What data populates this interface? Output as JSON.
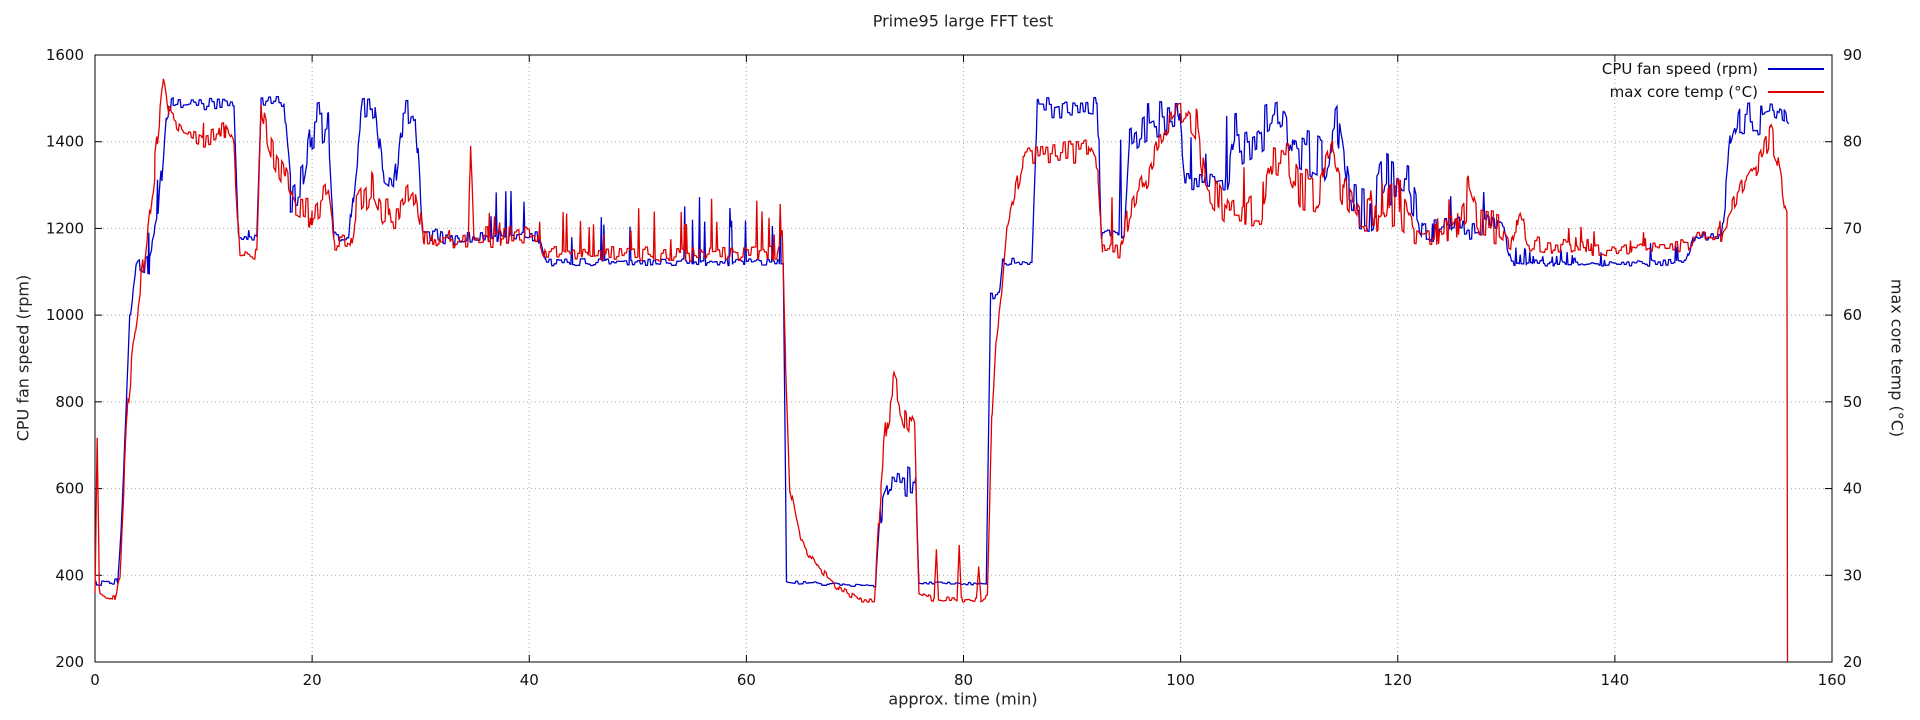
{
  "chart_data": {
    "type": "line",
    "title": "Prime95 large FFT test",
    "xlabel": "approx. time (min)",
    "ylabel": "CPU fan speed (rpm)",
    "y2label": "max core temp (°C)",
    "xlim": [
      0,
      160
    ],
    "ylim_left": [
      200,
      1600
    ],
    "ylim_right": [
      20,
      90
    ],
    "xticks": [
      0,
      20,
      40,
      60,
      80,
      100,
      120,
      140,
      160
    ],
    "yticks_left": [
      200,
      400,
      600,
      800,
      1000,
      1200,
      1400,
      1600
    ],
    "yticks_right": [
      20,
      30,
      40,
      50,
      60,
      70,
      80,
      90
    ],
    "grid": true,
    "legend_position": "top-right",
    "background": "#ffffff",
    "sample_step": 0.08,
    "seed": 20240,
    "series": [
      {
        "id": "cpu-fan-speed",
        "name": "CPU fan speed (rpm)",
        "color": "#0000cc",
        "axis": "left",
        "units": "rpm",
        "anchors": [
          [
            0,
            380,
            6,
            0
          ],
          [
            2.1,
            385,
            8,
            0
          ],
          [
            2.5,
            560,
            20,
            0
          ],
          [
            3.2,
            1000,
            25,
            0
          ],
          [
            3.8,
            1115,
            15,
            60
          ],
          [
            5,
            1130,
            40,
            120
          ],
          [
            5.8,
            1200,
            60,
            100
          ],
          [
            6.6,
            1470,
            25,
            0
          ],
          [
            7.2,
            1488,
            14,
            0
          ],
          [
            12.8,
            1488,
            14,
            0
          ],
          [
            13.2,
            1185,
            10,
            0
          ],
          [
            14.9,
            1182,
            10,
            40
          ],
          [
            15.3,
            1490,
            12,
            0
          ],
          [
            17.4,
            1490,
            15,
            0
          ],
          [
            18,
            1280,
            45,
            0
          ],
          [
            19.2,
            1300,
            60,
            0
          ],
          [
            20,
            1420,
            70,
            0
          ],
          [
            21.5,
            1440,
            60,
            0
          ],
          [
            22,
            1185,
            12,
            0
          ],
          [
            23.4,
            1180,
            12,
            0
          ],
          [
            23.8,
            1300,
            40,
            0
          ],
          [
            24.6,
            1470,
            30,
            0
          ],
          [
            25.8,
            1480,
            25,
            0
          ],
          [
            26.5,
            1320,
            40,
            0
          ],
          [
            27.5,
            1300,
            50,
            0
          ],
          [
            28.2,
            1460,
            50,
            0
          ],
          [
            29.5,
            1470,
            40,
            0
          ],
          [
            30.2,
            1185,
            18,
            0
          ],
          [
            32.8,
            1175,
            18,
            0
          ],
          [
            33.5,
            1180,
            14,
            110
          ],
          [
            40.8,
            1180,
            14,
            120
          ],
          [
            41.5,
            1122,
            8,
            140
          ],
          [
            55,
            1122,
            8,
            150
          ],
          [
            63,
            1122,
            8,
            170
          ],
          [
            63.4,
            1125,
            10,
            200
          ],
          [
            63.7,
            385,
            4,
            0
          ],
          [
            71.9,
            374,
            3,
            0
          ],
          [
            72.4,
            560,
            50,
            0
          ],
          [
            73.3,
            630,
            55,
            0
          ],
          [
            75.6,
            615,
            50,
            0
          ],
          [
            75.9,
            382,
            3,
            0
          ],
          [
            82.1,
            380,
            3,
            0
          ],
          [
            82.5,
            1045,
            10,
            0
          ],
          [
            83.3,
            1048,
            8,
            0
          ],
          [
            83.6,
            1122,
            10,
            0
          ],
          [
            86.3,
            1122,
            10,
            0
          ],
          [
            86.8,
            1480,
            25,
            0
          ],
          [
            92.3,
            1480,
            25,
            0
          ],
          [
            92.7,
            1185,
            15,
            120
          ],
          [
            94.8,
            1185,
            15,
            250
          ],
          [
            95.3,
            1420,
            60,
            0
          ],
          [
            97,
            1450,
            55,
            0
          ],
          [
            99.8,
            1460,
            40,
            0
          ],
          [
            100.4,
            1305,
            25,
            120
          ],
          [
            104.3,
            1300,
            30,
            150
          ],
          [
            105,
            1400,
            70,
            0
          ],
          [
            107,
            1420,
            60,
            0
          ],
          [
            109.5,
            1460,
            45,
            0
          ],
          [
            110.5,
            1380,
            70,
            0
          ],
          [
            113,
            1350,
            80,
            0
          ],
          [
            114.5,
            1420,
            70,
            0
          ],
          [
            115.5,
            1260,
            60,
            0
          ],
          [
            117.5,
            1250,
            60,
            0
          ],
          [
            119,
            1300,
            80,
            0
          ],
          [
            121,
            1290,
            70,
            0
          ],
          [
            122.3,
            1190,
            25,
            70
          ],
          [
            126,
            1200,
            30,
            80
          ],
          [
            128,
            1210,
            35,
            60
          ],
          [
            129.8,
            1190,
            20,
            40
          ],
          [
            130.5,
            1122,
            7,
            50
          ],
          [
            134,
            1120,
            7,
            30
          ],
          [
            140,
            1118,
            6,
            30
          ],
          [
            146.5,
            1122,
            8,
            50
          ],
          [
            147.3,
            1180,
            10,
            30
          ],
          [
            149.8,
            1182,
            10,
            30
          ],
          [
            150.6,
            1380,
            50,
            0
          ],
          [
            151.5,
            1450,
            50,
            0
          ],
          [
            153.5,
            1460,
            45,
            0
          ],
          [
            154.6,
            1470,
            25,
            0
          ],
          [
            155.6,
            1455,
            20,
            0
          ],
          [
            156,
            1440,
            15,
            0
          ]
        ]
      },
      {
        "id": "max-core-temp",
        "name": "max core temp (°C)",
        "color": "#e00000",
        "axis": "right",
        "units": "°C",
        "anchors": [
          [
            0,
            28,
            0.4,
            0
          ],
          [
            0.2,
            46,
            1,
            0
          ],
          [
            0.4,
            28,
            0.5,
            0
          ],
          [
            1.8,
            27.3,
            0.4,
            0
          ],
          [
            2.3,
            30,
            0.5,
            0
          ],
          [
            3,
            50,
            1.5,
            0
          ],
          [
            3.6,
            57,
            1.5,
            0
          ],
          [
            4.5,
            66,
            1.5,
            0
          ],
          [
            5.5,
            77,
            1.5,
            0
          ],
          [
            6.3,
            87,
            1.2,
            0
          ],
          [
            6.8,
            83,
            1.2,
            0
          ],
          [
            8,
            81.5,
            1.2,
            0
          ],
          [
            10,
            80.5,
            1.2,
            2
          ],
          [
            12,
            81,
            1.5,
            2
          ],
          [
            12.8,
            79,
            1.5,
            0
          ],
          [
            13.3,
            67.5,
            0.8,
            0
          ],
          [
            14.9,
            67,
            0.8,
            2
          ],
          [
            15.3,
            83.5,
            1.5,
            0
          ],
          [
            16.2,
            79,
            1.5,
            0
          ],
          [
            17.5,
            76,
            1.5,
            0
          ],
          [
            18.5,
            72.5,
            1.5,
            0
          ],
          [
            20,
            72,
            2,
            2
          ],
          [
            21.5,
            74,
            2,
            0
          ],
          [
            22.1,
            68.5,
            1,
            0
          ],
          [
            23.5,
            68,
            1,
            0
          ],
          [
            24,
            72,
            2,
            0
          ],
          [
            25.5,
            74.5,
            2,
            0
          ],
          [
            26.5,
            71.5,
            2,
            0
          ],
          [
            28,
            72,
            2,
            2
          ],
          [
            29.5,
            74.5,
            2,
            0
          ],
          [
            30.3,
            68.8,
            1,
            0
          ],
          [
            33,
            68.3,
            1,
            2
          ],
          [
            34.4,
            68.5,
            1,
            0
          ],
          [
            34.6,
            80.5,
            1,
            0
          ],
          [
            34.9,
            69,
            1,
            0
          ],
          [
            36,
            69,
            1.2,
            4
          ],
          [
            40.8,
            69,
            1.2,
            4
          ],
          [
            41.5,
            67.2,
            0.8,
            5
          ],
          [
            55,
            67,
            0.8,
            6
          ],
          [
            62.9,
            67.2,
            0.8,
            7
          ],
          [
            63.3,
            70,
            1,
            7
          ],
          [
            63.6,
            55,
            1,
            0
          ],
          [
            64,
            40,
            0.8,
            0
          ],
          [
            65,
            34,
            0.5,
            0
          ],
          [
            66.5,
            31,
            0.4,
            0
          ],
          [
            68.5,
            28.5,
            0.4,
            0
          ],
          [
            70.5,
            27.2,
            0.3,
            0
          ],
          [
            71.8,
            27,
            0.3,
            0
          ],
          [
            72.4,
            40,
            2,
            0
          ],
          [
            73,
            48,
            2.5,
            0
          ],
          [
            73.6,
            51,
            2.5,
            0
          ],
          [
            74.6,
            48,
            2.5,
            0
          ],
          [
            75.5,
            46,
            2,
            0
          ],
          [
            75.9,
            28,
            0.4,
            0
          ],
          [
            77.3,
            27.2,
            0.3,
            0
          ],
          [
            77.5,
            33,
            0,
            0
          ],
          [
            77.7,
            27.2,
            0.3,
            0
          ],
          [
            79.4,
            27.2,
            0.3,
            0
          ],
          [
            79.6,
            33.5,
            0,
            0
          ],
          [
            79.8,
            27.2,
            0.3,
            0
          ],
          [
            81.2,
            27.2,
            0.3,
            0
          ],
          [
            81.4,
            31,
            0,
            0
          ],
          [
            81.6,
            27.2,
            0.3,
            0
          ],
          [
            82.2,
            27.5,
            0.3,
            0
          ],
          [
            82.6,
            48,
            1,
            0
          ],
          [
            83,
            57,
            1,
            0
          ],
          [
            83.5,
            62,
            1,
            0
          ],
          [
            84,
            70,
            1,
            0
          ],
          [
            85.5,
            78,
            1.2,
            0
          ],
          [
            88,
            78.5,
            1.2,
            0
          ],
          [
            91.5,
            79,
            1.5,
            0
          ],
          [
            92.4,
            77,
            1.5,
            0
          ],
          [
            92.8,
            67.5,
            1,
            3
          ],
          [
            94.5,
            67.5,
            1,
            8
          ],
          [
            95.2,
            72,
            2,
            0
          ],
          [
            96.5,
            75,
            2,
            0
          ],
          [
            98,
            80,
            2.5,
            0
          ],
          [
            99.5,
            83,
            2,
            0
          ],
          [
            100.5,
            83.5,
            1.5,
            0
          ],
          [
            101.5,
            82,
            2,
            0
          ],
          [
            102.3,
            75,
            2,
            0
          ],
          [
            103.5,
            73.5,
            2,
            0
          ],
          [
            104.5,
            71.5,
            1.5,
            4
          ],
          [
            106,
            72,
            2,
            6
          ],
          [
            107.5,
            73,
            2.5,
            6
          ],
          [
            108.5,
            78.5,
            2.5,
            0
          ],
          [
            110,
            78,
            2.5,
            0
          ],
          [
            111,
            74.5,
            2.5,
            0
          ],
          [
            112.5,
            74,
            2.5,
            3
          ],
          [
            114,
            78.5,
            2.5,
            0
          ],
          [
            115,
            74,
            2,
            0
          ],
          [
            116.5,
            71,
            2,
            0
          ],
          [
            118,
            71.5,
            2.5,
            4
          ],
          [
            120,
            73,
            3,
            4
          ],
          [
            121.5,
            69.5,
            1.5,
            4
          ],
          [
            123.5,
            69,
            1.5,
            4
          ],
          [
            125,
            70,
            2,
            5
          ],
          [
            126.5,
            74,
            3,
            0
          ],
          [
            127.5,
            70.5,
            2,
            3
          ],
          [
            129.5,
            70,
            2,
            3
          ],
          [
            130.5,
            68.5,
            1,
            3
          ],
          [
            131.2,
            72,
            1,
            0
          ],
          [
            132,
            68.3,
            1,
            2
          ],
          [
            136,
            67.8,
            0.8,
            2
          ],
          [
            140,
            67.5,
            0.8,
            2
          ],
          [
            144,
            67.8,
            0.8,
            2
          ],
          [
            146.8,
            68,
            0.8,
            3
          ],
          [
            147.5,
            69.2,
            0.8,
            2
          ],
          [
            149.8,
            69.3,
            0.8,
            2
          ],
          [
            150.8,
            72,
            1.5,
            3
          ],
          [
            152,
            75,
            2,
            3
          ],
          [
            153,
            77,
            2,
            3
          ],
          [
            154.3,
            81,
            1.5,
            0
          ],
          [
            154.9,
            79,
            1.5,
            0
          ],
          [
            155.3,
            76,
            1,
            0
          ],
          [
            155.7,
            72.5,
            1,
            0
          ],
          [
            155.85,
            72,
            0,
            0
          ],
          [
            155.9,
            20,
            0,
            0
          ]
        ]
      }
    ]
  }
}
